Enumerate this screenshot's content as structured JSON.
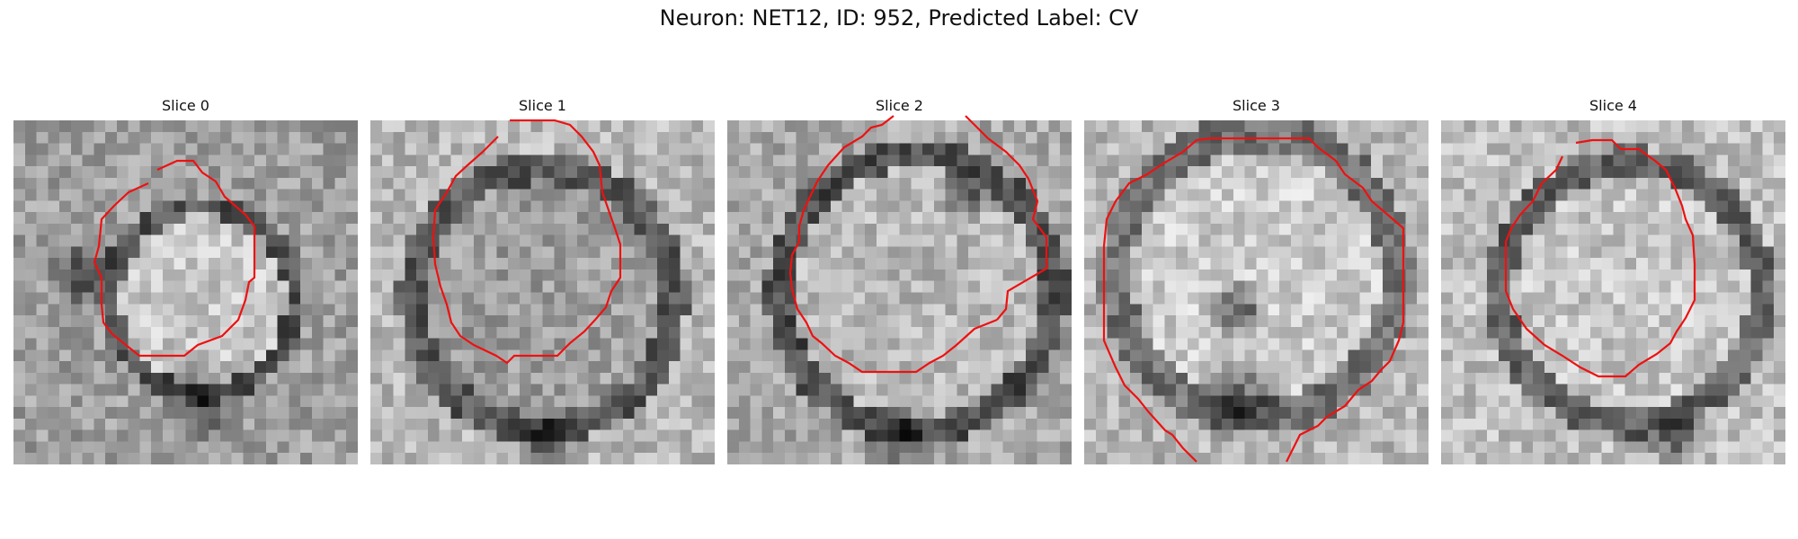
{
  "figure": {
    "title": "Neuron: NET12, ID: 952, Predicted Label: CV",
    "contour_color": "#ee1111"
  },
  "slices": [
    {
      "title": "Slice 0"
    },
    {
      "title": "Slice 1"
    },
    {
      "title": "Slice 2"
    },
    {
      "title": "Slice 3"
    },
    {
      "title": "Slice 4"
    }
  ]
}
